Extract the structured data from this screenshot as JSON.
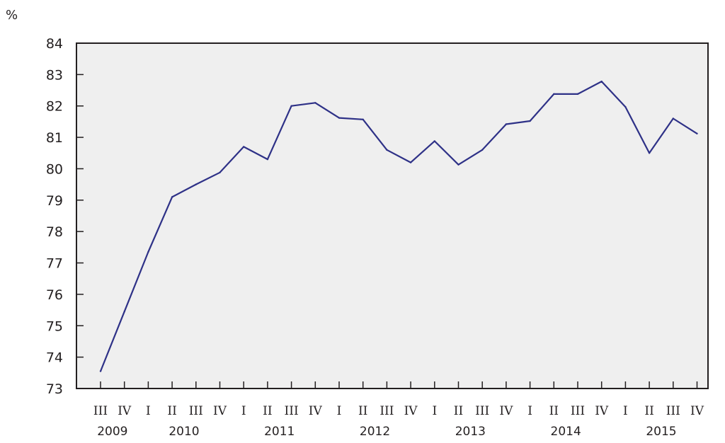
{
  "chart_data": {
    "type": "line",
    "ylabel": "%",
    "ylim": [
      73,
      84
    ],
    "yticks": [
      73,
      74,
      75,
      76,
      77,
      78,
      79,
      80,
      81,
      82,
      83,
      84
    ],
    "x": [
      "III",
      "IV",
      "I",
      "II",
      "III",
      "IV",
      "I",
      "II",
      "III",
      "IV",
      "I",
      "II",
      "III",
      "IV",
      "I",
      "II",
      "III",
      "IV",
      "I",
      "II",
      "III",
      "IV",
      "I",
      "II",
      "III",
      "IV"
    ],
    "year_groups": [
      {
        "label": "2009",
        "from": 0,
        "to": 1
      },
      {
        "label": "2010",
        "from": 2,
        "to": 5
      },
      {
        "label": "2011",
        "from": 6,
        "to": 9
      },
      {
        "label": "2012",
        "from": 10,
        "to": 13
      },
      {
        "label": "2013",
        "from": 14,
        "to": 17
      },
      {
        "label": "2014",
        "from": 18,
        "to": 21
      },
      {
        "label": "2015",
        "from": 22,
        "to": 25
      }
    ],
    "series": [
      {
        "color": "#2e3187",
        "values": [
          73.55,
          75.45,
          77.35,
          79.1,
          79.5,
          79.88,
          80.7,
          80.3,
          82.0,
          82.1,
          81.62,
          81.57,
          80.6,
          80.2,
          80.88,
          80.13,
          80.6,
          81.42,
          81.52,
          82.38,
          82.38,
          82.78,
          81.97,
          80.5,
          81.6,
          81.12
        ]
      }
    ],
    "grid": false,
    "plot_background": "#efefef"
  }
}
